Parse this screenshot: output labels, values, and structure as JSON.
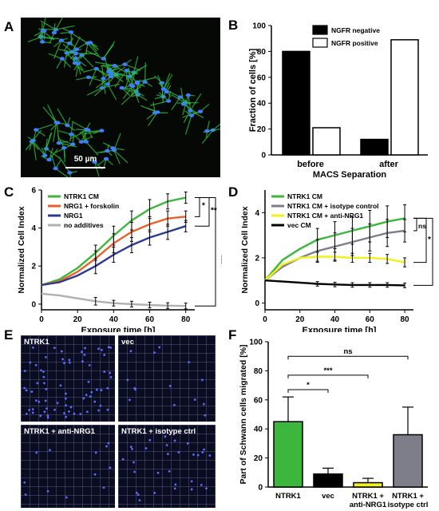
{
  "figure": {
    "panel_labels": [
      "A",
      "B",
      "C",
      "D",
      "E",
      "F"
    ],
    "panel_a": {
      "scale_bar": "50 µm"
    },
    "panel_e": {
      "tiles": [
        "NTRK1",
        "vec",
        "NTRK1 + anti-NRG1",
        "NTRK1 + isotype ctrl"
      ]
    },
    "colors": {
      "ntrk1": "#3db63d",
      "forskolin": "#e8602a",
      "nrg1": "#2d3a91",
      "none": "#b0b0b0",
      "isotype": "#7e7e8a",
      "anti_nrg1": "#f2f21a",
      "vec": "#000000",
      "cell_blue": "#3d7fff",
      "cell_green": "#2fbf3f"
    }
  },
  "chart_data": [
    {
      "panel": "B",
      "type": "bar",
      "categories": [
        "before",
        "after"
      ],
      "series": [
        {
          "name": "NGFR negative",
          "values": [
            80,
            12
          ],
          "fill": "#000000"
        },
        {
          "name": "NGFR positive",
          "values": [
            21,
            89
          ],
          "fill": "#ffffff"
        }
      ],
      "xlabel": "MACS Separation",
      "ylabel": "Fraction of cells [%]",
      "ylim": [
        0,
        100
      ],
      "yticks": [
        "0",
        "20",
        "40",
        "60",
        "80",
        "100"
      ],
      "legend": "top-right"
    },
    {
      "panel": "C",
      "type": "line",
      "xlabel": "Exposure time [h]",
      "ylabel": "Normalized Cell Index",
      "xlim": [
        0,
        85
      ],
      "ylim": [
        -0.3,
        6
      ],
      "xticks": [
        "0",
        "20",
        "40",
        "60",
        "80"
      ],
      "yticks": [
        "0",
        "2",
        "4",
        "6"
      ],
      "series": [
        {
          "name": "NTRK1 CM",
          "x": [
            0,
            10,
            20,
            30,
            40,
            50,
            60,
            70,
            80
          ],
          "y": [
            1.0,
            1.3,
            1.9,
            2.7,
            3.6,
            4.4,
            5.0,
            5.4,
            5.6
          ],
          "err": [
            0,
            0,
            0,
            0.4,
            0.5,
            0.5,
            0.5,
            0.4,
            0.3
          ]
        },
        {
          "name": "NRG1 + forskolin",
          "x": [
            0,
            10,
            20,
            30,
            40,
            50,
            60,
            70,
            80
          ],
          "y": [
            1.0,
            1.2,
            1.7,
            2.4,
            3.2,
            3.8,
            4.2,
            4.5,
            4.6
          ],
          "err": [
            0,
            0,
            0,
            0.4,
            0.5,
            0.5,
            0.4,
            0.4,
            0.3
          ]
        },
        {
          "name": "NRG1",
          "x": [
            0,
            10,
            20,
            30,
            40,
            50,
            60,
            70,
            80
          ],
          "y": [
            1.0,
            1.15,
            1.5,
            2.0,
            2.6,
            3.1,
            3.5,
            3.8,
            4.1
          ],
          "err": [
            0,
            0,
            0,
            0.4,
            0.4,
            0.4,
            0.4,
            0.4,
            0.3
          ]
        },
        {
          "name": "no additives",
          "x": [
            0,
            10,
            20,
            30,
            40,
            50,
            60,
            70,
            80
          ],
          "y": [
            0.55,
            0.45,
            0.3,
            0.15,
            0.05,
            0.0,
            -0.05,
            -0.08,
            -0.1
          ],
          "err": [
            0,
            0,
            0,
            0.2,
            0.15,
            0.15,
            0.15,
            0.15,
            0.15
          ]
        }
      ],
      "significance": [
        "*",
        "**",
        "***"
      ]
    },
    {
      "panel": "D",
      "type": "line",
      "xlabel": "Exposure time [h]",
      "ylabel": "Normalized Cell Index",
      "xlim": [
        0,
        85
      ],
      "ylim": [
        -0.3,
        5
      ],
      "xticks": [
        "0",
        "20",
        "40",
        "60",
        "80"
      ],
      "yticks": [
        "0",
        "2",
        "4"
      ],
      "series": [
        {
          "name": "NTRK1 CM",
          "x": [
            0,
            10,
            20,
            30,
            40,
            50,
            60,
            70,
            80
          ],
          "y": [
            1.0,
            1.9,
            2.4,
            2.8,
            3.0,
            3.2,
            3.4,
            3.6,
            3.75
          ],
          "err": [
            0,
            0,
            0,
            0.5,
            0.6,
            0.6,
            0.7,
            0.7,
            0.6
          ]
        },
        {
          "name": "NTRK1 CM + isotype control",
          "x": [
            0,
            10,
            20,
            30,
            40,
            50,
            60,
            70,
            80
          ],
          "y": [
            1.0,
            1.6,
            2.0,
            2.3,
            2.5,
            2.7,
            2.9,
            3.1,
            3.2
          ],
          "err": [
            0,
            0,
            0,
            0.5,
            0.6,
            0.6,
            0.6,
            0.6,
            0.5
          ]
        },
        {
          "name": "NTRK1 CM + anti-NRG1",
          "x": [
            0,
            10,
            20,
            30,
            40,
            50,
            60,
            70,
            80
          ],
          "y": [
            1.0,
            1.7,
            2.0,
            2.05,
            2.05,
            2.0,
            2.0,
            1.95,
            1.8
          ],
          "err": [
            0,
            0,
            0,
            0.2,
            0.2,
            0.2,
            0.2,
            0.2,
            0.2
          ]
        },
        {
          "name": "vec CM",
          "x": [
            0,
            10,
            20,
            30,
            40,
            50,
            60,
            70,
            80
          ],
          "y": [
            1.0,
            0.95,
            0.9,
            0.85,
            0.82,
            0.8,
            0.8,
            0.8,
            0.78
          ],
          "err": [
            0,
            0,
            0,
            0.1,
            0.1,
            0.1,
            0.1,
            0.1,
            0.1
          ]
        }
      ],
      "significance": [
        "ns",
        "*",
        "**"
      ]
    },
    {
      "panel": "F",
      "type": "bar",
      "categories": [
        "NTRK1",
        "vec",
        "NTRK1 +\nanti-NRG1",
        "NTRK1 +\nisotype ctrl"
      ],
      "values": [
        45,
        9,
        3,
        36
      ],
      "errors": [
        17,
        4,
        3,
        19
      ],
      "ylabel": "Part of Schwann cells migrated [%]",
      "ylim": [
        0,
        100
      ],
      "yticks": [
        "0",
        "20",
        "40",
        "60",
        "80",
        "100"
      ],
      "significance": [
        "ns",
        "***",
        "*"
      ]
    }
  ]
}
